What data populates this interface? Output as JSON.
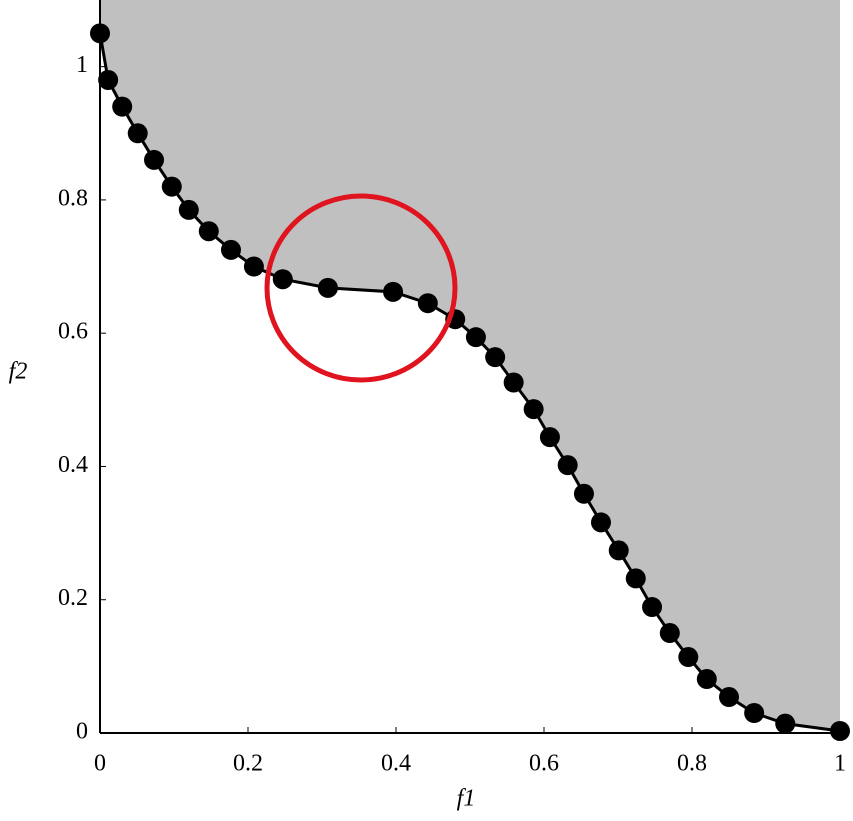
{
  "chart_data": {
    "type": "scatter",
    "x_label": "f1",
    "y_label": "f2",
    "xlim": [
      0,
      1
    ],
    "ylim": [
      0,
      1.1
    ],
    "xticks": [
      0,
      0.2,
      0.4,
      0.6,
      0.8,
      1
    ],
    "yticks": [
      0,
      0.2,
      0.4,
      0.6,
      0.8,
      1
    ],
    "line": true,
    "shade_above": true,
    "shade_color": "#c0c0c0",
    "series": [
      {
        "color": "#000000",
        "x": [
          0,
          0.011,
          0.03,
          0.051,
          0.073,
          0.097,
          0.12,
          0.147,
          0.177,
          0.208,
          0.247,
          0.308,
          0.396,
          0.443,
          0.48,
          0.508,
          0.534,
          0.559,
          0.586,
          0.608,
          0.632,
          0.654,
          0.677,
          0.701,
          0.724,
          0.746,
          0.77,
          0.795,
          0.82,
          0.85,
          0.884,
          0.926,
          1.0
        ],
        "values": [
          1.05,
          0.98,
          0.94,
          0.9,
          0.86,
          0.82,
          0.785,
          0.753,
          0.725,
          0.7,
          0.681,
          0.668,
          0.662,
          0.645,
          0.621,
          0.594,
          0.564,
          0.526,
          0.486,
          0.444,
          0.402,
          0.359,
          0.316,
          0.274,
          0.232,
          0.189,
          0.15,
          0.114,
          0.081,
          0.054,
          0.03,
          0.014,
          0.003
        ]
      }
    ]
  }
}
